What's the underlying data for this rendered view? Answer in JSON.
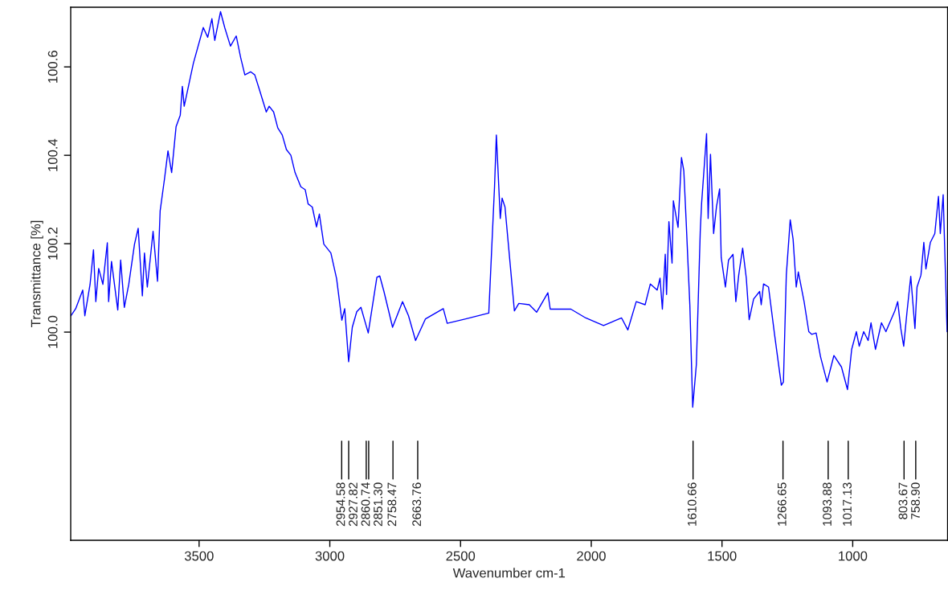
{
  "chart_data": {
    "type": "line",
    "xlabel": "Wavenumber cm-1",
    "ylabel": "Transmittance [%]",
    "xlim": [
      3991,
      637
    ],
    "xticks": [
      3500,
      3000,
      2500,
      2000,
      1500,
      1000
    ],
    "ylim": [
      99.529,
      100.735
    ],
    "yticks": [
      {
        "value": 100.0,
        "label": "100.0"
      },
      {
        "value": 100.2,
        "label": "100.2"
      },
      {
        "value": 100.4,
        "label": "100.4"
      },
      {
        "value": 100.6,
        "label": "100.6"
      }
    ],
    "grid": false,
    "legend": false,
    "marker": "none",
    "line_style": "solid",
    "series": [
      {
        "color": "#0000ff",
        "x": [
          3990,
          3972,
          3945,
          3937,
          3917,
          3904,
          3895,
          3884,
          3868,
          3851,
          3846,
          3835,
          3811,
          3800,
          3786,
          3769,
          3747,
          3733,
          3717,
          3709,
          3698,
          3676,
          3659,
          3649,
          3632,
          3619,
          3605,
          3588,
          3572,
          3564,
          3557,
          3522,
          3484,
          3467,
          3451,
          3440,
          3418,
          3402,
          3380,
          3358,
          3341,
          3325,
          3303,
          3287,
          3270,
          3243,
          3232,
          3215,
          3199,
          3182,
          3166,
          3149,
          3133,
          3111,
          3094,
          3083,
          3067,
          3051,
          3040,
          3023,
          2996,
          2974,
          2954,
          2943,
          2928,
          2914,
          2897,
          2881,
          2853,
          2820,
          2809,
          2793,
          2760,
          2722,
          2699,
          2672,
          2634,
          2566,
          2551,
          2480,
          2392,
          2370,
          2363,
          2348,
          2341,
          2330,
          2294,
          2277,
          2237,
          2209,
          2166,
          2157,
          2078,
          2021,
          1953,
          1884,
          1860,
          1828,
          1794,
          1774,
          1748,
          1737,
          1728,
          1717,
          1712,
          1703,
          1691,
          1686,
          1668,
          1655,
          1646,
          1637,
          1623,
          1612,
          1598,
          1583,
          1578,
          1559,
          1553,
          1544,
          1532,
          1521,
          1509,
          1503,
          1487,
          1475,
          1458,
          1447,
          1436,
          1421,
          1407,
          1396,
          1379,
          1356,
          1350,
          1341,
          1322,
          1299,
          1273,
          1265,
          1254,
          1239,
          1228,
          1216,
          1208,
          1186,
          1168,
          1157,
          1140,
          1123,
          1098,
          1072,
          1043,
          1020,
          1004,
          986,
          975,
          958,
          941,
          930,
          913,
          890,
          873,
          861,
          839,
          828,
          816,
          805,
          793,
          778,
          762,
          754,
          739,
          728,
          720,
          703,
          686,
          672,
          665,
          654,
          639
        ],
        "values": [
          100.037,
          100.053,
          100.095,
          100.037,
          100.108,
          100.186,
          100.069,
          100.144,
          100.108,
          100.202,
          100.069,
          100.16,
          100.05,
          100.163,
          100.056,
          100.108,
          100.199,
          100.235,
          100.082,
          100.179,
          100.102,
          100.228,
          100.115,
          100.274,
          100.348,
          100.41,
          100.361,
          100.465,
          100.491,
          100.556,
          100.511,
          100.608,
          100.689,
          100.667,
          100.709,
          100.66,
          100.725,
          100.689,
          100.647,
          100.67,
          100.621,
          100.582,
          100.589,
          100.582,
          100.55,
          100.498,
          100.511,
          100.498,
          100.462,
          100.446,
          100.413,
          100.4,
          100.361,
          100.329,
          100.322,
          100.29,
          100.283,
          100.238,
          100.267,
          100.199,
          100.179,
          100.121,
          100.027,
          100.053,
          99.933,
          100.011,
          100.046,
          100.056,
          99.998,
          100.124,
          100.127,
          100.092,
          100.011,
          100.069,
          100.037,
          99.981,
          100.03,
          100.053,
          100.02,
          100.03,
          100.043,
          100.329,
          100.446,
          100.257,
          100.303,
          100.283,
          100.048,
          100.065,
          100.062,
          100.045,
          100.089,
          100.052,
          100.052,
          100.032,
          100.015,
          100.032,
          100.005,
          100.069,
          100.062,
          100.109,
          100.095,
          100.122,
          100.052,
          100.176,
          100.085,
          100.25,
          100.156,
          100.297,
          100.237,
          100.395,
          100.365,
          100.25,
          100.062,
          99.83,
          99.927,
          100.23,
          100.291,
          100.449,
          100.257,
          100.402,
          100.223,
          100.284,
          100.324,
          100.169,
          100.102,
          100.163,
          100.176,
          100.069,
          100.129,
          100.19,
          100.122,
          100.028,
          100.075,
          100.092,
          100.062,
          100.109,
          100.102,
          99.995,
          99.88,
          99.887,
          100.129,
          100.254,
          100.21,
          100.102,
          100.136,
          100.069,
          100.001,
          99.995,
          99.998,
          99.944,
          99.887,
          99.947,
          99.921,
          99.87,
          99.961,
          100.001,
          99.968,
          100.001,
          99.981,
          100.021,
          99.961,
          100.021,
          100.001,
          100.018,
          100.048,
          100.069,
          100.008,
          99.968,
          100.042,
          100.126,
          100.008,
          100.102,
          100.129,
          100.203,
          100.143,
          100.203,
          100.223,
          100.307,
          100.223,
          100.311,
          100.001
        ]
      }
    ],
    "ref_lines": [
      {
        "axis": "x",
        "value": 2954.58,
        "label": "2954.58"
      },
      {
        "axis": "x",
        "value": 2927.82,
        "label": "2927.82"
      },
      {
        "axis": "x",
        "value": 2860.74,
        "label": "2860.74"
      },
      {
        "axis": "x",
        "value": 2851.3,
        "label": "2851.30"
      },
      {
        "axis": "x",
        "value": 2758.47,
        "label": "2758.47"
      },
      {
        "axis": "x",
        "value": 2663.76,
        "label": "2663.76"
      },
      {
        "axis": "x",
        "value": 1610.66,
        "label": "1610.66"
      },
      {
        "axis": "x",
        "value": 1266.65,
        "label": "1266.65"
      },
      {
        "axis": "x",
        "value": 1093.88,
        "label": "1093.88"
      },
      {
        "axis": "x",
        "value": 1017.13,
        "label": "1017.13"
      },
      {
        "axis": "x",
        "value": 803.67,
        "label": "803.67"
      },
      {
        "axis": "x",
        "value": 758.9,
        "label": "758.90"
      }
    ]
  }
}
